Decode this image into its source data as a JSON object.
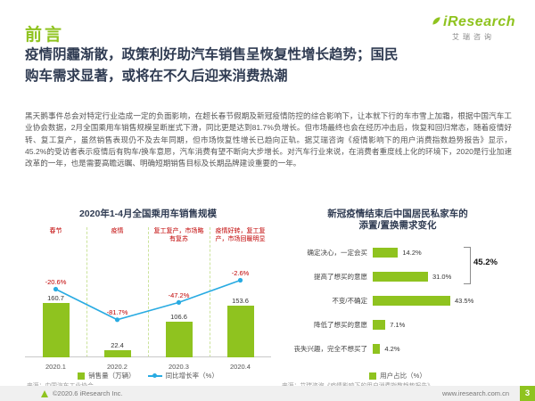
{
  "colors": {
    "green": "#8FC31F",
    "blue": "#29ABE2",
    "red": "#C00000",
    "dark": "#2F3B52"
  },
  "header": {
    "section_label": "前言",
    "title_line1": "疫情阴霾渐散，政策利好助汽车销售呈恢复性增长趋势；国民",
    "title_line2": "购车需求显著，或将在不久后迎来消费热潮"
  },
  "logo": {
    "brand": "iResearch",
    "brand_cn": "艾瑞咨询"
  },
  "body_text": "黑天鹅事件总会对特定行业造成一定的负面影响，在超长春节假期及新冠疫情防控的综合影响下，让本就下行的车市雪上加霜，根据中国汽车工业协会数据，2月全国乘用车销售规模呈断崖式下滑，同比更是达到81.7%负增长。但市场最终也会在经历冲击后，恢复和回归常态，随着疫情好转、复工复产，虽然销售表现仍不及去年同期，但市场恢复性增长已趋向正轨。据艾瑞咨询《疫情影响下的用户消费指数趋势报告》显示，45.2%的受访者表示疫情后有购车/换车意愿，汽车消费有望不断向大步增长。对汽车行业来说，在消费者重度线上化的环境下，2020是行业加速改革的一年，也是需要高瞻远瞩、明确短期销售目标及长期品牌建设重要的一年。",
  "chart_data": [
    {
      "type": "bar",
      "subtype": "bar+line combo",
      "title": "2020年1-4月全国乘用车销售规模",
      "categories": [
        "2020.1",
        "2020.2",
        "2020.3",
        "2020.4"
      ],
      "series": [
        {
          "name": "销售量（万辆）",
          "type": "bar",
          "values": [
            160.7,
            22.4,
            106.6,
            153.6
          ]
        },
        {
          "name": "同比增长率（%）",
          "type": "line",
          "values": [
            -20.6,
            -81.7,
            -47.2,
            -2.6
          ]
        }
      ],
      "bar_labels": [
        "160.7",
        "22.4",
        "106.6",
        "153.6"
      ],
      "line_labels": [
        "-20.6%",
        "-81.7%",
        "-47.2%",
        "-2.6%"
      ],
      "annotations": [
        "春节",
        "疫情",
        "复工复产，市场略有复苏",
        "疫情好转，复工复产，市场回暖明显"
      ],
      "ylim_bar": [
        0,
        180
      ],
      "ylim_line": [
        -100,
        0
      ],
      "source": "来源：中国汽车工业协会。"
    },
    {
      "type": "bar",
      "subtype": "horizontal",
      "title_line1": "新冠疫情结束后中国居民私家车的",
      "title_line2": "添置/置换需求变化",
      "categories": [
        "确定决心，一定会买",
        "提高了想买的意愿",
        "不变/不确定",
        "降低了想买的意愿",
        "丧失兴趣，完全不想买了"
      ],
      "values": [
        14.2,
        31.0,
        43.5,
        7.1,
        4.2
      ],
      "value_labels": [
        "14.2%",
        "31.0%",
        "43.5%",
        "7.1%",
        "4.2%"
      ],
      "bracket_label": "45.2%",
      "legend": "用户占比（%）",
      "xlim": [
        0,
        50
      ],
      "source": "来源：艾瑞咨询《疫情影响下的用户消费指数趋势报告》"
    }
  ],
  "footer": {
    "copyright": "©2020.6 iResearch Inc.",
    "url": "www.iresearch.com.cn",
    "page_number": "3"
  }
}
